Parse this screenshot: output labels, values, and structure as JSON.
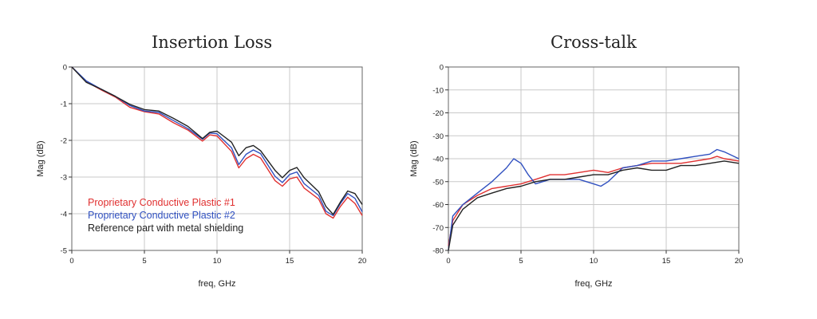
{
  "chart_data": [
    {
      "type": "line",
      "title": "Insertion Loss",
      "xlabel": "freq, GHz",
      "ylabel": "Mag (dB)",
      "xlim": [
        0,
        20
      ],
      "ylim": [
        -5,
        0
      ],
      "xticks": [
        0,
        5,
        10,
        15,
        20
      ],
      "yticks": [
        0,
        -1,
        -2,
        -3,
        -4,
        -5
      ],
      "grid": true,
      "legend_position": "bottom-left",
      "series": [
        {
          "name": "Proprietary Conductive Plastic #1",
          "color": "#e03030",
          "points": [
            [
              0,
              0
            ],
            [
              1,
              -0.4
            ],
            [
              2,
              -0.62
            ],
            [
              3,
              -0.82
            ],
            [
              4,
              -1.1
            ],
            [
              5,
              -1.22
            ],
            [
              6,
              -1.28
            ],
            [
              7,
              -1.52
            ],
            [
              8,
              -1.72
            ],
            [
              9,
              -2.02
            ],
            [
              9.5,
              -1.85
            ],
            [
              10,
              -1.88
            ],
            [
              11,
              -2.3
            ],
            [
              11.5,
              -2.75
            ],
            [
              12,
              -2.5
            ],
            [
              12.5,
              -2.38
            ],
            [
              13,
              -2.48
            ],
            [
              14,
              -3.1
            ],
            [
              14.5,
              -3.25
            ],
            [
              15,
              -3.05
            ],
            [
              15.5,
              -3.0
            ],
            [
              16,
              -3.3
            ],
            [
              17,
              -3.6
            ],
            [
              17.5,
              -4.0
            ],
            [
              18,
              -4.12
            ],
            [
              18.5,
              -3.8
            ],
            [
              19,
              -3.55
            ],
            [
              19.5,
              -3.72
            ],
            [
              20,
              -4.05
            ]
          ]
        },
        {
          "name": "Proprietary Conductive Plastic #2",
          "color": "#3050c0",
          "points": [
            [
              0,
              0
            ],
            [
              1,
              -0.38
            ],
            [
              2,
              -0.6
            ],
            [
              3,
              -0.8
            ],
            [
              4,
              -1.05
            ],
            [
              5,
              -1.2
            ],
            [
              6,
              -1.24
            ],
            [
              7,
              -1.46
            ],
            [
              8,
              -1.68
            ],
            [
              9,
              -1.97
            ],
            [
              9.5,
              -1.8
            ],
            [
              10,
              -1.82
            ],
            [
              11,
              -2.2
            ],
            [
              11.5,
              -2.66
            ],
            [
              12,
              -2.38
            ],
            [
              12.5,
              -2.26
            ],
            [
              13,
              -2.36
            ],
            [
              14,
              -2.98
            ],
            [
              14.5,
              -3.15
            ],
            [
              15,
              -2.93
            ],
            [
              15.5,
              -2.86
            ],
            [
              16,
              -3.18
            ],
            [
              17,
              -3.5
            ],
            [
              17.5,
              -3.93
            ],
            [
              18,
              -4.05
            ],
            [
              18.5,
              -3.72
            ],
            [
              19,
              -3.45
            ],
            [
              19.5,
              -3.58
            ],
            [
              20,
              -3.95
            ]
          ]
        },
        {
          "name": "Reference part with metal shielding",
          "color": "#222222",
          "points": [
            [
              0,
              0
            ],
            [
              1,
              -0.42
            ],
            [
              2,
              -0.6
            ],
            [
              3,
              -0.8
            ],
            [
              4,
              -1.02
            ],
            [
              5,
              -1.16
            ],
            [
              6,
              -1.2
            ],
            [
              7,
              -1.4
            ],
            [
              8,
              -1.62
            ],
            [
              9,
              -1.95
            ],
            [
              9.5,
              -1.78
            ],
            [
              10,
              -1.75
            ],
            [
              11,
              -2.05
            ],
            [
              11.5,
              -2.42
            ],
            [
              12,
              -2.2
            ],
            [
              12.5,
              -2.14
            ],
            [
              13,
              -2.28
            ],
            [
              14,
              -2.82
            ],
            [
              14.5,
              -3.02
            ],
            [
              15,
              -2.82
            ],
            [
              15.5,
              -2.74
            ],
            [
              16,
              -3.02
            ],
            [
              17,
              -3.4
            ],
            [
              17.5,
              -3.8
            ],
            [
              18,
              -4.02
            ],
            [
              18.5,
              -3.68
            ],
            [
              19,
              -3.38
            ],
            [
              19.5,
              -3.45
            ],
            [
              20,
              -3.75
            ]
          ]
        }
      ]
    },
    {
      "type": "line",
      "title": "Cross-talk",
      "xlabel": "freq, GHz",
      "ylabel": "Mag (dB)",
      "xlim": [
        0,
        20
      ],
      "ylim": [
        -80,
        0
      ],
      "xticks": [
        0,
        5,
        10,
        15,
        20
      ],
      "yticks": [
        0,
        -10,
        -20,
        -30,
        -40,
        -50,
        -60,
        -70,
        -80
      ],
      "grid": true,
      "series": [
        {
          "name": "Proprietary Conductive Plastic #1",
          "color": "#e03030",
          "points": [
            [
              0,
              -78
            ],
            [
              0.3,
              -67
            ],
            [
              1,
              -60
            ],
            [
              2,
              -56
            ],
            [
              3,
              -53
            ],
            [
              4,
              -52
            ],
            [
              5,
              -51
            ],
            [
              6,
              -49
            ],
            [
              7,
              -47
            ],
            [
              8,
              -47
            ],
            [
              9,
              -46
            ],
            [
              10,
              -45
            ],
            [
              11,
              -46
            ],
            [
              12,
              -44
            ],
            [
              13,
              -43
            ],
            [
              14,
              -42
            ],
            [
              15,
              -42
            ],
            [
              16,
              -42
            ],
            [
              17,
              -41
            ],
            [
              18,
              -40
            ],
            [
              18.5,
              -39
            ],
            [
              19,
              -40
            ],
            [
              20,
              -41
            ]
          ]
        },
        {
          "name": "Proprietary Conductive Plastic #2",
          "color": "#3050c0",
          "points": [
            [
              0,
              -80
            ],
            [
              0.3,
              -65
            ],
            [
              1,
              -60
            ],
            [
              2,
              -55
            ],
            [
              3,
              -50
            ],
            [
              4,
              -44
            ],
            [
              4.5,
              -40
            ],
            [
              5,
              -42
            ],
            [
              5.5,
              -47
            ],
            [
              6,
              -51
            ],
            [
              7,
              -49
            ],
            [
              8,
              -49
            ],
            [
              9,
              -49
            ],
            [
              10,
              -51
            ],
            [
              10.5,
              -52
            ],
            [
              11,
              -50
            ],
            [
              12,
              -44
            ],
            [
              13,
              -43
            ],
            [
              14,
              -41
            ],
            [
              15,
              -41
            ],
            [
              16,
              -40
            ],
            [
              17,
              -39
            ],
            [
              18,
              -38
            ],
            [
              18.5,
              -36
            ],
            [
              19,
              -37
            ],
            [
              20,
              -40
            ]
          ]
        },
        {
          "name": "Reference part with metal shielding",
          "color": "#222222",
          "points": [
            [
              0,
              -80
            ],
            [
              0.3,
              -69
            ],
            [
              1,
              -62
            ],
            [
              2,
              -57
            ],
            [
              3,
              -55
            ],
            [
              4,
              -53
            ],
            [
              5,
              -52
            ],
            [
              6,
              -50
            ],
            [
              7,
              -49
            ],
            [
              8,
              -49
            ],
            [
              9,
              -48
            ],
            [
              10,
              -47
            ],
            [
              11,
              -47
            ],
            [
              12,
              -45
            ],
            [
              13,
              -44
            ],
            [
              14,
              -45
            ],
            [
              15,
              -45
            ],
            [
              16,
              -43
            ],
            [
              17,
              -43
            ],
            [
              18,
              -42
            ],
            [
              19,
              -41
            ],
            [
              20,
              -42
            ]
          ]
        }
      ]
    }
  ]
}
